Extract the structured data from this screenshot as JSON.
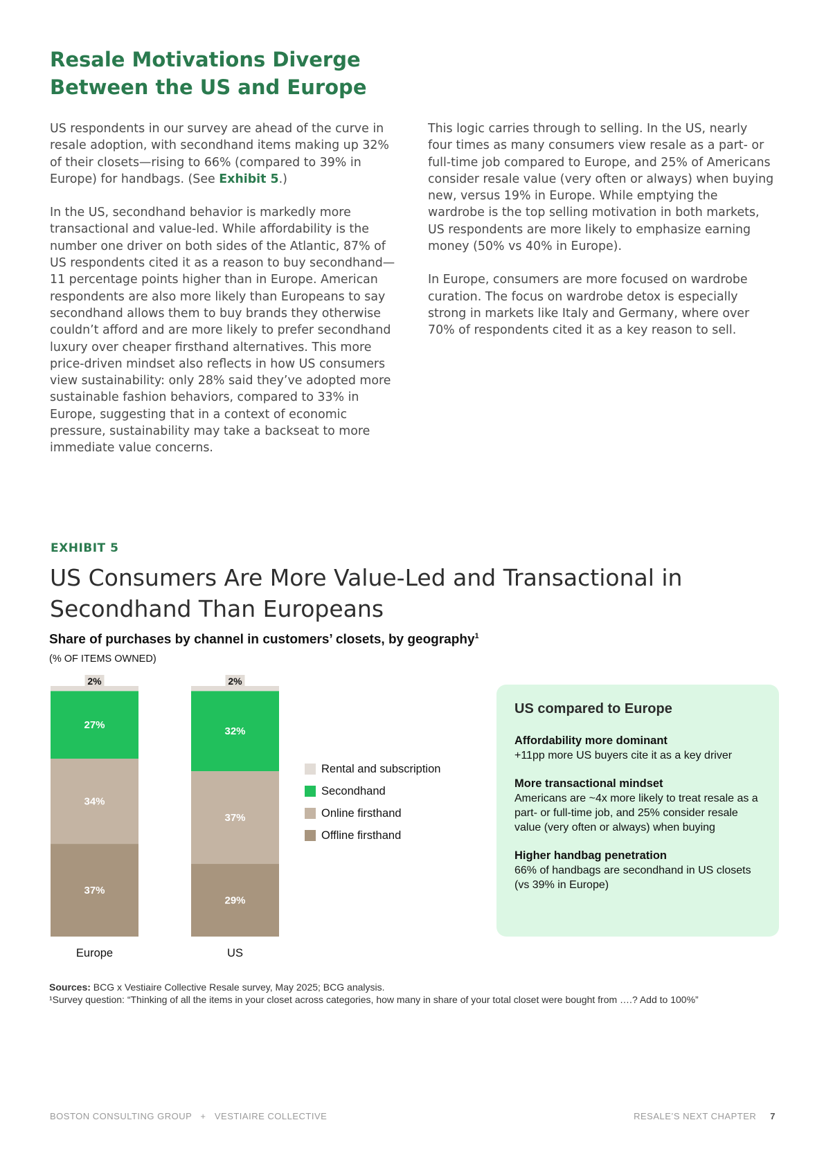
{
  "page": {
    "title": "Resale Motivations Diverge Between the US and Europe",
    "left_col": {
      "p1_pre": "US respondents in our survey are ahead of the curve in resale adoption, with secondhand items making up 32% of their closets—rising to 66% (compared to 39% in Europe) for handbags. (See ",
      "p1_ref": "Exhibit 5",
      "p1_post": ".)",
      "p2": "In the US, secondhand behavior is markedly more transactional and value-led. While affordability is the number one driver on both sides of the Atlantic, 87% of US respondents cited it as a reason to buy secondhand—11 percentage points higher than in Europe. American respondents are also more likely than Europeans to say secondhand allows them to buy brands they otherwise couldn’t afford and are more likely to prefer secondhand luxury over cheaper firsthand alternatives. This more price-driven mindset also reflects in how US consumers view sustainability: only 28% said they’ve adopted more sustainable fashion behaviors, compared to 33% in Europe, suggesting that in a context of economic pressure, sustainability may take a backseat to more immediate value concerns."
    },
    "right_col": {
      "p1": "This logic carries through to selling. In the US, nearly four times as many consumers view resale as a part- or full-time job compared to Europe, and 25% of Americans consider resale value (very often or always) when buying new, versus 19% in Europe. While emptying the wardrobe is the top selling motivation in both markets, US respondents are more likely to emphasize earning money (50% vs 40% in Europe).",
      "p2": "In Europe, consumers are more focused on wardrobe curation. The focus on wardrobe detox is especially strong in markets like Italy and Germany, where over 70% of respondents cited it as a key reason to sell."
    }
  },
  "exhibit": {
    "label": "EXHIBIT 5",
    "title": "US Consumers Are More Value-Led and Transactional in Secondhand Than Europeans",
    "chart_title": "Share of purchases by channel in customers’ closets, by geography",
    "chart_title_sup": "1",
    "chart_subtitle": "(% OF ITEMS OWNED)"
  },
  "chart_data": {
    "type": "bar",
    "stacked": true,
    "categories": [
      "Europe",
      "US"
    ],
    "series": [
      {
        "name": "Offline firsthand",
        "values": [
          37,
          29
        ],
        "color": "#a8957e"
      },
      {
        "name": "Online firsthand",
        "values": [
          34,
          37
        ],
        "color": "#c4b4a3"
      },
      {
        "name": "Secondhand",
        "values": [
          27,
          32
        ],
        "color": "#21c05c"
      },
      {
        "name": "Rental and subscription",
        "values": [
          2,
          2
        ],
        "color": "#e2dcd6"
      }
    ],
    "legend_order": [
      "Rental and subscription",
      "Secondhand",
      "Online firsthand",
      "Offline firsthand"
    ],
    "ylim": [
      0,
      100
    ]
  },
  "callout": {
    "title": "US compared to Europe",
    "blocks": [
      {
        "heading": "Affordability more dominant",
        "text": "+11pp more US buyers cite it as a key driver"
      },
      {
        "heading": "More transactional mindset",
        "text": "Americans are ~4x more likely to treat resale as a part- or full-time job, and 25% consider resale value (very often or always) when buying"
      },
      {
        "heading": "Higher handbag penetration",
        "text": "66% of handbags are secondhand in US closets (vs 39% in Europe)"
      }
    ]
  },
  "sources": {
    "label": "Sources:",
    "text": " BCG x Vestiaire Collective Resale survey, May 2025; BCG analysis.",
    "footnote": "¹Survey question: “Thinking of all the items in your closet across categories, how many in share of your total closet were bought from ….? Add to 100%”"
  },
  "footer": {
    "left": "BOSTON CONSULTING GROUP   +   VESTIAIRE COLLECTIVE",
    "right": "RESALE’S NEXT CHAPTER",
    "page_number": "7"
  }
}
